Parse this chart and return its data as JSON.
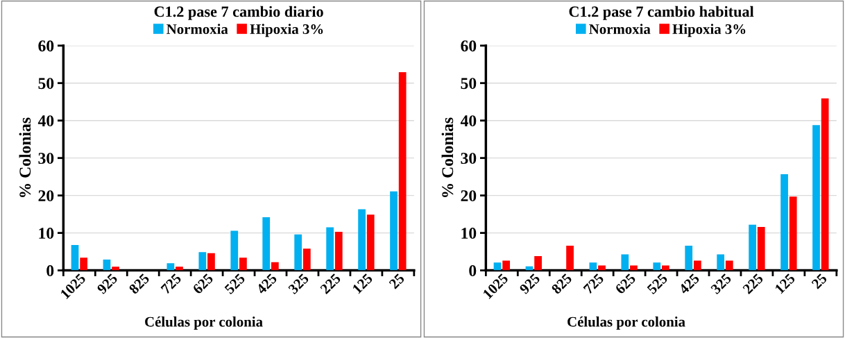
{
  "chart_data": [
    {
      "type": "bar",
      "title": "C1.2 pase 7 cambio diario",
      "xlabel": "Células por colonia",
      "ylabel": "% Colonias",
      "categories": [
        "1025",
        "925",
        "825",
        "725",
        "625",
        "525",
        "425",
        "325",
        "225",
        "125",
        "25"
      ],
      "series": [
        {
          "name": "Normoxia",
          "color": "#00b0f0",
          "values": [
            6.8,
            2.9,
            0,
            1.9,
            4.9,
            10.6,
            14.2,
            9.6,
            11.5,
            16.3,
            21.1
          ]
        },
        {
          "name": "Hipoxia 3%",
          "color": "#ff0000",
          "values": [
            3.4,
            1.0,
            0,
            1.0,
            4.6,
            3.4,
            2.2,
            5.8,
            10.3,
            14.9,
            52.9
          ]
        }
      ],
      "ylim": [
        0,
        60
      ],
      "yticks": [
        0,
        10,
        20,
        30,
        40,
        50,
        60
      ],
      "grid": "y",
      "legend": "top"
    },
    {
      "type": "bar",
      "title": "C1.2 pase 7 cambio habitual",
      "xlabel": "Células por colonia",
      "ylabel": "% Colonias",
      "categories": [
        "1025",
        "925",
        "825",
        "725",
        "625",
        "525",
        "425",
        "325",
        "225",
        "125",
        "25"
      ],
      "series": [
        {
          "name": "Normoxia",
          "color": "#00b0f0",
          "values": [
            2.1,
            1.1,
            0,
            2.1,
            4.3,
            2.1,
            6.6,
            4.3,
            12.2,
            25.7,
            38.8
          ]
        },
        {
          "name": "Hipoxia 3%",
          "color": "#ff0000",
          "values": [
            2.6,
            3.8,
            6.6,
            1.3,
            1.3,
            1.3,
            2.6,
            2.6,
            11.6,
            19.7,
            45.9
          ]
        }
      ],
      "ylim": [
        0,
        60
      ],
      "yticks": [
        0,
        10,
        20,
        30,
        40,
        50,
        60
      ],
      "grid": "y",
      "legend": "top"
    }
  ]
}
